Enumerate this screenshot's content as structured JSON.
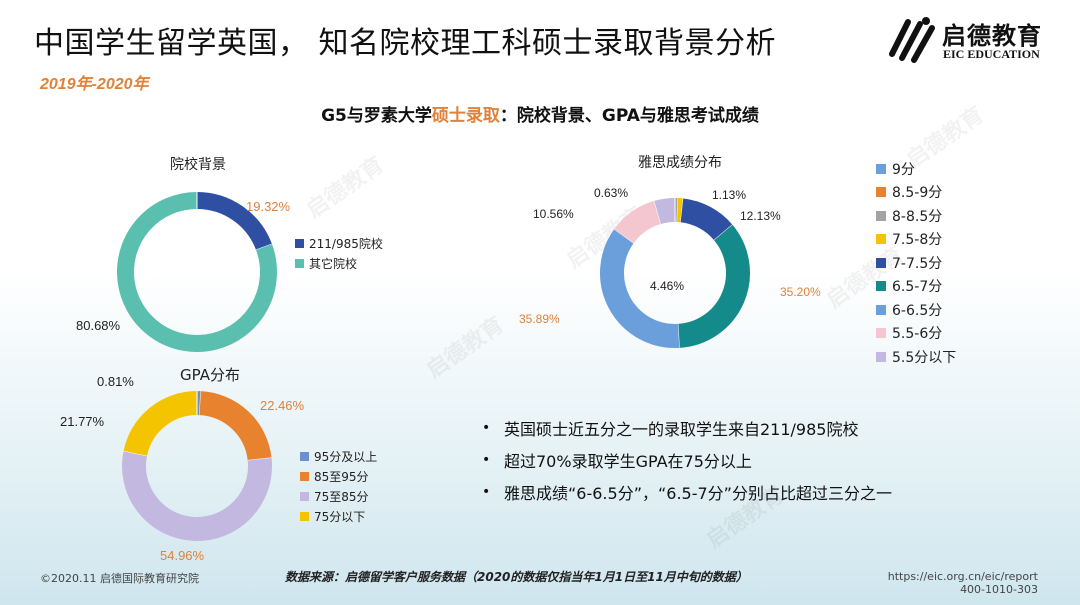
{
  "header": {
    "title": "中国学生留学英国， 知名院校理工科硕士录取背景分析",
    "year": "2019年-2020年",
    "logo_cn": "启德教育",
    "logo_en": "EIC EDUCATION"
  },
  "section": {
    "heading_pre": "G5与罗素大学",
    "heading_hl": "硕士录取",
    "heading_post": "：院校背景、GPA与雅思考试成绩"
  },
  "colors": {
    "dark_blue": "#2f4fa3",
    "teal": "#5bbfb0",
    "orange": "#e8822f",
    "lavender": "#c2b8e0",
    "gold": "#f5c400",
    "gray": "#a3a3a3",
    "sky": "#6b9fdc",
    "pink": "#f4c7d0",
    "bluegreen": "#158a8a"
  },
  "chart_data": [
    {
      "type": "pie",
      "title": "院校背景",
      "labels": [
        "211/985院校",
        "其它院校"
      ],
      "values": [
        19.32,
        80.68
      ],
      "value_labels": [
        "19.32%",
        "80.68%"
      ],
      "colors": [
        "#2f4fa3",
        "#5bbfb0"
      ]
    },
    {
      "type": "pie",
      "title": "GPA分布",
      "labels": [
        "95分及以上",
        "85至95分",
        "75至85分",
        "75分以下"
      ],
      "values": [
        0.81,
        22.46,
        54.96,
        21.77
      ],
      "value_labels": [
        "0.81%",
        "22.46%",
        "54.96%",
        "21.77%"
      ],
      "colors": [
        "#6d8fcf",
        "#e8822f",
        "#c2b8e0",
        "#f5c400"
      ]
    },
    {
      "type": "pie",
      "title": "雅思成绩分布",
      "labels": [
        "9分",
        "8.5-9分",
        "8-8.5分",
        "7.5-8分",
        "7-7.5分",
        "6.5-7分",
        "6-6.5分",
        "5.5-6分",
        "5.5分以下"
      ],
      "values": [
        0,
        0,
        0.63,
        1.13,
        12.13,
        35.2,
        35.89,
        10.56,
        4.46
      ],
      "value_labels": [
        "",
        "",
        "0.63%",
        "1.13%",
        "12.13%",
        "35.20%",
        "35.89%",
        "10.56%",
        "4.46%"
      ],
      "colors": [
        "#6b9fdc",
        "#e8822f",
        "#a3a3a3",
        "#f5c400",
        "#2f4fa3",
        "#158a8a",
        "#6b9fdc",
        "#f4c7d0",
        "#c2b8e0"
      ]
    }
  ],
  "bullets": [
    "英国硕士近五分之一的录取学生来自211/985院校",
    "超过70%录取学生GPA在75分以上",
    "雅思成绩“6-6.5分”，“6.5-7分”分别占比超过三分之一"
  ],
  "footer": {
    "copyright": "©2020.11 启德国际教育研究院",
    "source": "数据来源：启德留学客户服务数据（2020的数据仅指当年1月1日至11月中旬的数据）",
    "url": "https://eic.org.cn/eic/report",
    "phone": "400-1010-303"
  }
}
